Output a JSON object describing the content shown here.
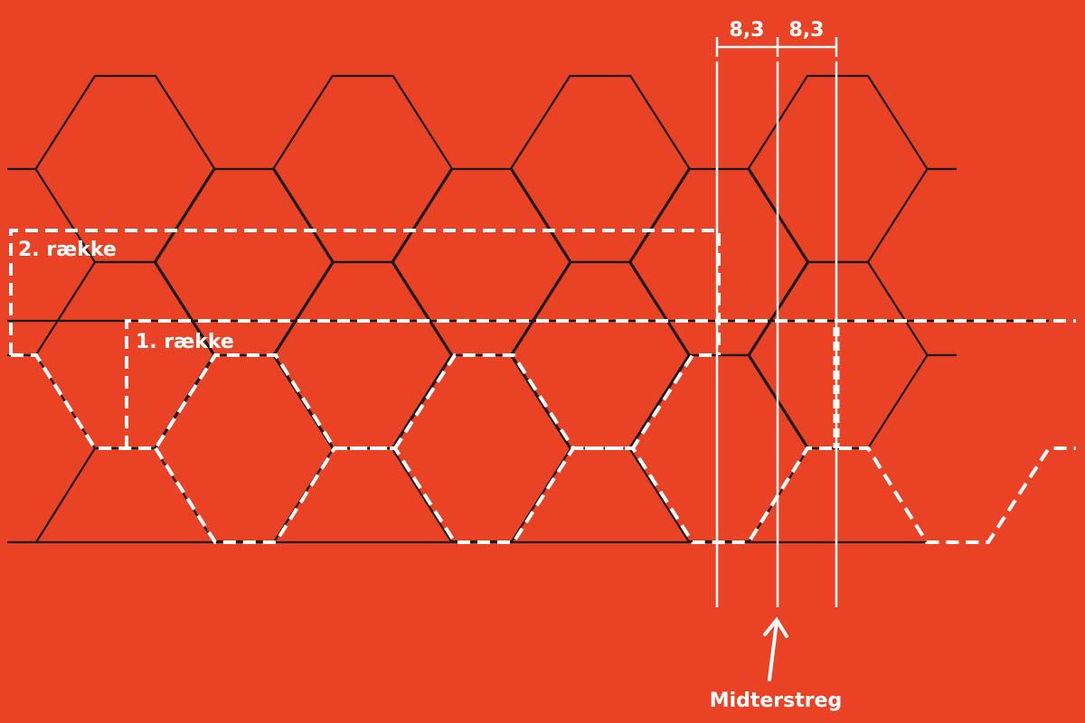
{
  "labels": {
    "row2": "2. række",
    "row1": "1. række",
    "dim_left": "8,3",
    "dim_right": "8,3",
    "midline": "Midterstreg"
  },
  "colors": {
    "background": "#EA4224",
    "hex_lines": "#1a1a1a",
    "annotations": "#ffffff"
  }
}
